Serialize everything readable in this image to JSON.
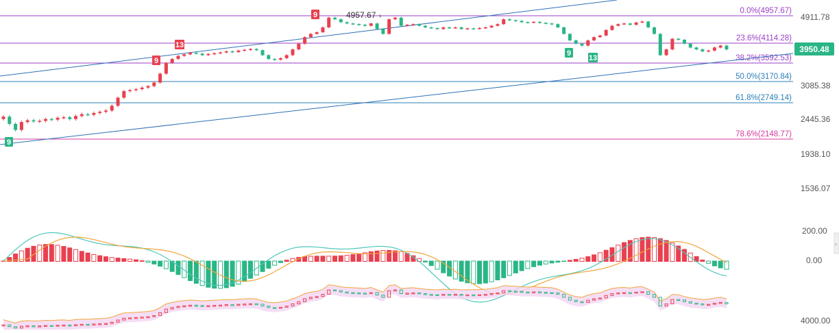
{
  "chart_data": [
    {
      "type": "candlestick",
      "panel": "price",
      "y_axis_ticks": [
        "4911.78",
        "3085.38",
        "2445.36",
        "1938.10",
        "1536.07"
      ],
      "current_price": "3950.48",
      "peak": {
        "value": 4957.67,
        "label": "4957.67"
      },
      "fibonacci_levels": [
        {
          "ratio": "0.0%",
          "value": 4957.67,
          "label": "0.0%(4957.67)",
          "color": "#9b3fc6"
        },
        {
          "ratio": "23.6%",
          "value": 4114.28,
          "label": "23.6%(4114.28)",
          "color": "#9b3fc6"
        },
        {
          "ratio": "38.2%",
          "value": 3592.53,
          "label": "38.2%(3592.53)",
          "color": "#9b3fc6"
        },
        {
          "ratio": "50.0%",
          "value": 3170.84,
          "label": "50.0%(3170.84)",
          "color": "#2c7fb8"
        },
        {
          "ratio": "61.8%",
          "value": 2749.14,
          "label": "61.8%(2749.14)",
          "color": "#2c7fb8"
        },
        {
          "ratio": "78.6%",
          "value": 2148.77,
          "label": "78.6%(2148.77)",
          "color": "#d63aa0"
        }
      ],
      "td_markers": [
        {
          "label": "9",
          "kind": "buy"
        },
        {
          "label": "9",
          "kind": "sell"
        },
        {
          "label": "13",
          "kind": "sell"
        },
        {
          "label": "9",
          "kind": "sell"
        },
        {
          "label": "9",
          "kind": "buy"
        },
        {
          "label": "13",
          "kind": "buy"
        }
      ],
      "closes": [
        2520,
        2400,
        2300,
        2430,
        2460,
        2440,
        2450,
        2480,
        2470,
        2500,
        2510,
        2480,
        2530,
        2560,
        2550,
        2580,
        2600,
        2620,
        2700,
        2850,
        2980,
        3000,
        3020,
        3050,
        3080,
        3150,
        3350,
        3600,
        3700,
        3780,
        3820,
        3860,
        3840,
        3800,
        3830,
        3850,
        3870,
        3900,
        3880,
        3920,
        3940,
        3960,
        3930,
        3800,
        3700,
        3680,
        3720,
        3800,
        3950,
        4100,
        4300,
        4400,
        4450,
        4600,
        4900,
        4850,
        4760,
        4720,
        4700,
        4680,
        4650,
        4720,
        4550,
        4400,
        4850,
        4900,
        4650,
        4680,
        4700,
        4650,
        4600,
        4580,
        4550,
        4600,
        4580,
        4600,
        4550,
        4570,
        4560,
        4580,
        4600,
        4650,
        4700,
        4850,
        4820,
        4800,
        4760,
        4750,
        4770,
        4740,
        4720,
        4700,
        4600,
        4400,
        4200,
        4100,
        4050,
        4200,
        4300,
        4350,
        4520,
        4650,
        4700,
        4720,
        4680,
        4750,
        4780,
        4600,
        4400,
        3800,
        3950,
        4250,
        4220,
        4100,
        4000,
        3950,
        3900,
        3920,
        4000,
        4050,
        3950
      ]
    },
    {
      "type": "bar+line",
      "panel": "macd",
      "y_axis_ticks": [
        "200.00",
        "0.00"
      ],
      "colors": {
        "positive": "#e8404f",
        "negative": "#2ab585",
        "dif": "#4fc7b9",
        "dea": "#f2a63a"
      }
    },
    {
      "type": "candlestick+band",
      "panel": "lower",
      "y_axis_ticks": [
        "4000.00"
      ]
    }
  ]
}
